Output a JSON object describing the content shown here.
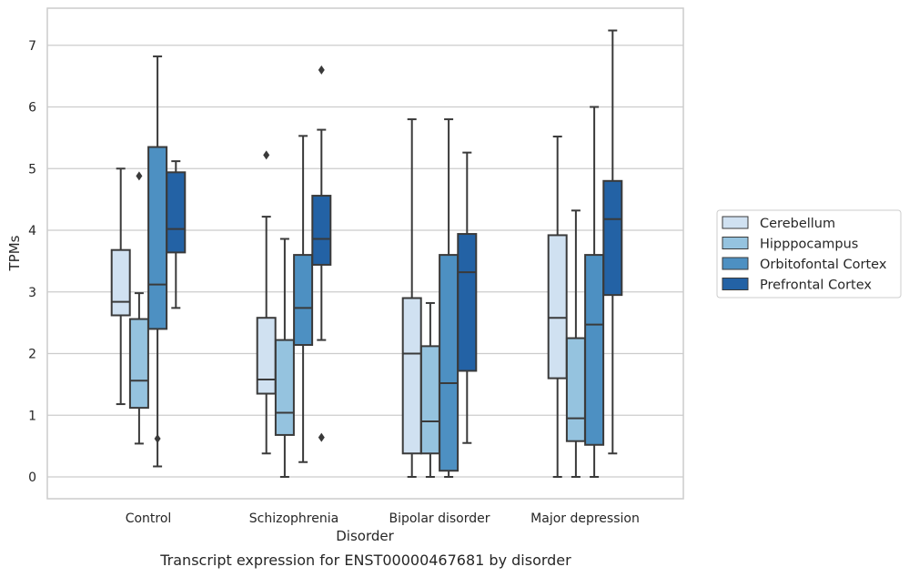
{
  "caption": "Transcript expression for ENST00000467681 by disorder",
  "chart_data": {
    "type": "box",
    "xlabel": "Disorder",
    "ylabel": "TPMs",
    "ylim": [
      -0.35,
      7.6
    ],
    "yticks": [
      0,
      1,
      2,
      3,
      4,
      5,
      6,
      7
    ],
    "grid": "horizontal",
    "legend_position": "right",
    "categories": [
      "Control",
      "Schizophrenia",
      "Bipolar disorder",
      "Major depression"
    ],
    "series": [
      {
        "name": "Cerebellum",
        "color": "#d0e1f1",
        "boxes": [
          {
            "q1": 2.62,
            "median": 2.84,
            "q3": 3.68,
            "whisker_low": 1.18,
            "whisker_high": 5.0,
            "outliers": []
          },
          {
            "q1": 1.35,
            "median": 1.58,
            "q3": 2.58,
            "whisker_low": 0.38,
            "whisker_high": 4.22,
            "outliers": [
              5.22
            ]
          },
          {
            "q1": 0.38,
            "median": 2.0,
            "q3": 2.9,
            "whisker_low": 0.0,
            "whisker_high": 5.8,
            "outliers": []
          },
          {
            "q1": 1.6,
            "median": 2.58,
            "q3": 3.92,
            "whisker_low": 0.0,
            "whisker_high": 5.52,
            "outliers": []
          }
        ]
      },
      {
        "name": "Hipppocampus",
        "color": "#95c3df",
        "boxes": [
          {
            "q1": 1.12,
            "median": 1.56,
            "q3": 2.56,
            "whisker_low": 0.54,
            "whisker_high": 2.98,
            "outliers": [
              4.88
            ]
          },
          {
            "q1": 0.68,
            "median": 1.04,
            "q3": 2.22,
            "whisker_low": 0.0,
            "whisker_high": 3.86,
            "outliers": []
          },
          {
            "q1": 0.38,
            "median": 0.9,
            "q3": 2.12,
            "whisker_low": 0.0,
            "whisker_high": 2.82,
            "outliers": []
          },
          {
            "q1": 0.58,
            "median": 0.95,
            "q3": 2.25,
            "whisker_low": 0.0,
            "whisker_high": 4.32,
            "outliers": []
          }
        ]
      },
      {
        "name": "Orbitofontal Cortex",
        "color": "#4d90c2",
        "boxes": [
          {
            "q1": 2.4,
            "median": 3.12,
            "q3": 5.35,
            "whisker_low": 0.17,
            "whisker_high": 6.82,
            "outliers": [
              0.62
            ]
          },
          {
            "q1": 2.14,
            "median": 2.74,
            "q3": 3.6,
            "whisker_low": 0.24,
            "whisker_high": 5.53,
            "outliers": []
          },
          {
            "q1": 0.1,
            "median": 1.52,
            "q3": 3.6,
            "whisker_low": 0.0,
            "whisker_high": 5.8,
            "outliers": []
          },
          {
            "q1": 0.52,
            "median": 2.47,
            "q3": 3.6,
            "whisker_low": 0.0,
            "whisker_high": 6.0,
            "outliers": []
          }
        ]
      },
      {
        "name": "Prefrontal Cortex",
        "color": "#2362a5",
        "boxes": [
          {
            "q1": 3.64,
            "median": 4.02,
            "q3": 4.94,
            "whisker_low": 2.74,
            "whisker_high": 5.12,
            "outliers": []
          },
          {
            "q1": 3.44,
            "median": 3.86,
            "q3": 4.56,
            "whisker_low": 2.22,
            "whisker_high": 5.63,
            "outliers": [
              6.6,
              0.64
            ]
          },
          {
            "q1": 1.72,
            "median": 3.32,
            "q3": 3.94,
            "whisker_low": 0.55,
            "whisker_high": 5.26,
            "outliers": []
          },
          {
            "q1": 2.95,
            "median": 4.18,
            "q3": 4.8,
            "whisker_low": 0.38,
            "whisker_high": 7.24,
            "outliers": []
          }
        ]
      }
    ]
  }
}
